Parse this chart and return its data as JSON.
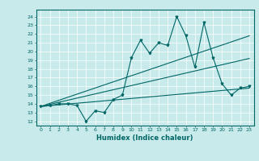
{
  "xlabel": "Humidex (Indice chaleur)",
  "ylabel": "",
  "bg_color": "#c8eaea",
  "line_color": "#006666",
  "xlim": [
    -0.5,
    23.5
  ],
  "ylim": [
    11.5,
    24.8
  ],
  "xticks": [
    0,
    1,
    2,
    3,
    4,
    5,
    6,
    7,
    8,
    9,
    10,
    11,
    12,
    13,
    14,
    15,
    16,
    17,
    18,
    19,
    20,
    21,
    22,
    23
  ],
  "yticks": [
    12,
    13,
    14,
    15,
    16,
    17,
    18,
    19,
    20,
    21,
    22,
    23,
    24
  ],
  "main_data": {
    "x": [
      0,
      1,
      2,
      3,
      4,
      5,
      6,
      7,
      8,
      9,
      10,
      11,
      12,
      13,
      14,
      15,
      16,
      17,
      18,
      19,
      20,
      21,
      22,
      23
    ],
    "y": [
      13.7,
      13.8,
      14.0,
      14.0,
      13.8,
      12.0,
      13.2,
      13.0,
      14.5,
      15.0,
      19.3,
      21.3,
      19.8,
      21.0,
      20.7,
      24.0,
      21.8,
      18.2,
      23.3,
      19.3,
      16.3,
      15.0,
      15.8,
      16.0
    ]
  },
  "trend1": {
    "x": [
      0,
      23
    ],
    "y": [
      13.7,
      21.8
    ]
  },
  "trend2": {
    "x": [
      0,
      23
    ],
    "y": [
      13.7,
      19.2
    ]
  },
  "trend3": {
    "x": [
      0,
      23
    ],
    "y": [
      13.7,
      15.8
    ]
  }
}
